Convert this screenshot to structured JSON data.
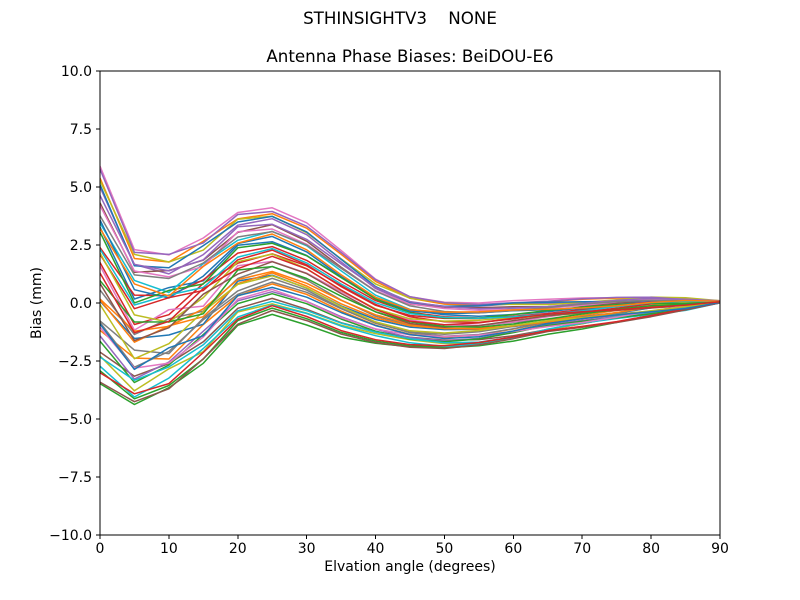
{
  "chart_data": {
    "type": "line",
    "suptitle": "STHINSIGHTV3    NONE",
    "title": "Antenna Phase Biases: BeiDOU-E6",
    "xlabel": "Elvation angle (degrees)",
    "ylabel": "Bias (mm)",
    "xlim": [
      0,
      90
    ],
    "ylim": [
      -10,
      10
    ],
    "xticks": [
      0,
      10,
      20,
      30,
      40,
      50,
      60,
      70,
      80,
      90
    ],
    "yticks": [
      -10,
      -7.5,
      -5,
      -2.5,
      0,
      2.5,
      5,
      7.5,
      10
    ],
    "ytick_labels": [
      "−10.0",
      "−7.5",
      "−5.0",
      "−2.5",
      "0.0",
      "2.5",
      "5.0",
      "7.5",
      "10.0"
    ],
    "grid": false,
    "legend": "none",
    "background": "#ffffff",
    "spine_color": "#000000",
    "text_color": "#000000",
    "line_width": 1.5,
    "colors": [
      "#1f77b4",
      "#ff7f0e",
      "#2ca02c",
      "#d62728",
      "#9467bd",
      "#8c564b",
      "#e377c2",
      "#7f7f7f",
      "#bcbd22",
      "#17becf"
    ],
    "x": [
      0,
      5,
      10,
      15,
      20,
      25,
      30,
      35,
      40,
      45,
      50,
      55,
      60,
      65,
      70,
      75,
      80,
      85,
      90
    ],
    "band_top": [
      5.9,
      2.4,
      2.1,
      2.8,
      3.9,
      4.1,
      3.4,
      2.2,
      1.0,
      0.3,
      0.1,
      0.05,
      0.1,
      0.1,
      0.15,
      0.2,
      0.25,
      0.2,
      0.1
    ],
    "band_bottom": [
      -3.5,
      -4.5,
      -3.7,
      -2.6,
      -1.0,
      -0.5,
      -0.9,
      -1.4,
      -1.7,
      -1.9,
      -2.0,
      -1.9,
      -1.65,
      -1.3,
      -1.05,
      -0.8,
      -0.55,
      -0.3,
      0.0
    ],
    "ensemble": {
      "n_lines": 44,
      "level_order": [
        30,
        12,
        0,
        25,
        38,
        7,
        43,
        19,
        5,
        33,
        16,
        41,
        2,
        28,
        9,
        36,
        22,
        14,
        40,
        4,
        31,
        18,
        8,
        26,
        42,
        1,
        35,
        13,
        24,
        6,
        39,
        17,
        29,
        3,
        37,
        21,
        10,
        34,
        15,
        27,
        11,
        32,
        20,
        23
      ],
      "wiggle_x_indices": [
        0,
        1,
        2,
        3,
        4
      ],
      "wiggle_patterns": [
        [
          0.3,
          -0.2,
          0.45,
          -0.3,
          0.1
        ],
        [
          -0.45,
          0.3,
          -0.5,
          0.25,
          -0.1
        ],
        [
          0.1,
          0.5,
          0.2,
          -0.4,
          0.15
        ],
        [
          -0.25,
          -0.5,
          -0.2,
          0.35,
          -0.15
        ],
        [
          0.45,
          0.15,
          -0.4,
          -0.2,
          0.05
        ],
        [
          -0.3,
          0.45,
          0.3,
          0.1,
          -0.05
        ],
        [
          0.2,
          -0.4,
          -0.1,
          0.45,
          0.12
        ],
        [
          -0.1,
          0.1,
          0.5,
          -0.15,
          -0.12
        ]
      ],
      "mid_jitter": 0.07,
      "end_convergence": [
        0.0,
        0.1
      ]
    }
  }
}
